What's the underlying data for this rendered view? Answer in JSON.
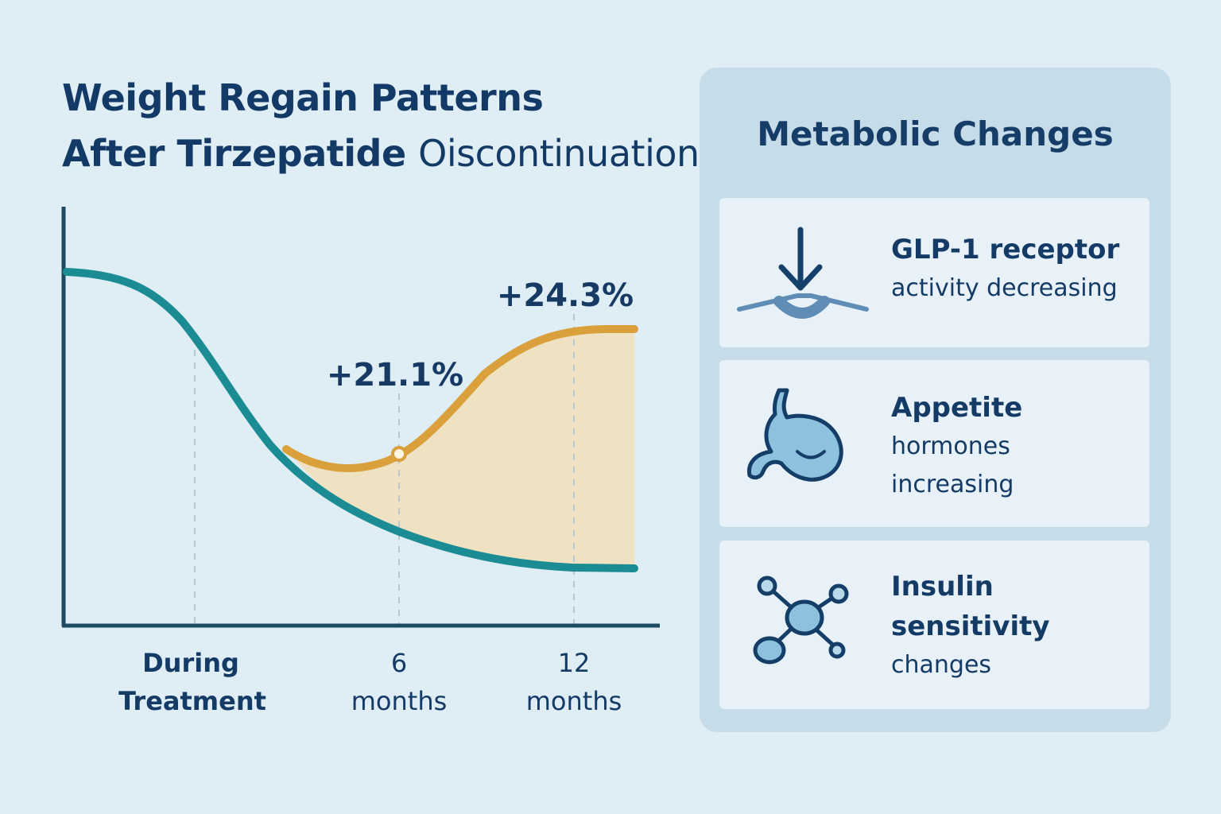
{
  "title": {
    "line1": "Weight Regain Patterns",
    "line2_bold": "After Tirzepatide",
    "line2_light": "Oiscontinuation"
  },
  "colors": {
    "background": "#dfedf5",
    "treatment_line": "#1b8c94",
    "regain_line": "#d9a03b",
    "regain_fill": "#efe1bf",
    "text": "#133a66",
    "panel": "#c6dde9",
    "card": "#e8f1f7"
  },
  "chart_data": {
    "type": "line",
    "title": "Weight Regain Patterns After Tirzepatide Oiscontinuation",
    "categories": [
      "During Treatment",
      "6 months",
      "12 months"
    ],
    "category_lines": [
      [
        "During",
        "Treatment"
      ],
      [
        "6",
        "months"
      ],
      [
        "12",
        "months"
      ]
    ],
    "series": [
      {
        "role": "on-treatment",
        "color": "#1b8c94"
      },
      {
        "role": "after-discontinuation",
        "color": "#d9a03b"
      }
    ],
    "annotations": [
      {
        "text": "+21.1%",
        "category": "6 months"
      },
      {
        "text": "+24.3%",
        "category": "12 months"
      }
    ],
    "y_ticks": false,
    "grid": "vertical dashed at categories"
  },
  "panel": {
    "title": "Metabolic Changes",
    "items": [
      {
        "icon": "receptor-down-arrow-icon",
        "head": "GLP-1 receptor",
        "sub": "activity decreasing"
      },
      {
        "icon": "stomach-icon",
        "head": "Appetite",
        "sub": "hormones",
        "sub2": "increasing"
      },
      {
        "icon": "molecule-icon",
        "head": "Insulin",
        "sub": "sensitivity",
        "sub2": "changes",
        "head2_bold": true
      }
    ]
  }
}
